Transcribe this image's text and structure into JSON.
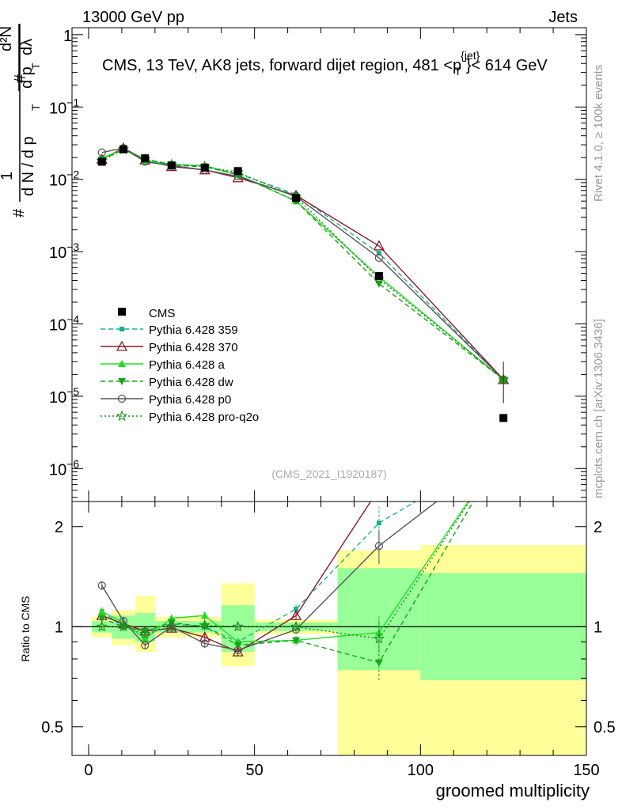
{
  "header": {
    "energy_label": "13000 GeV pp",
    "category_label": "Jets",
    "plot_title_main": "CMS, 13 TeV, AK8 jets, forward dijet region, 481 <p",
    "plot_title_sup": "{jet}",
    "plot_title_sub": "T",
    "plot_title_end": "}< 614 GeV",
    "analysis_id": "(CMS_2021_I1920187)",
    "side_label_rivet": "Rivet 4.1.0, ≥ 100k events",
    "side_label_mcplots": "mcplots.cern.ch [arXiv:1306.3436]"
  },
  "axes": {
    "ylabel_main": "1/N dN/dpT / d²N/dpT dλ",
    "ylabel_ratio": "Ratio to CMS",
    "xlabel": "groomed multiplicity"
  },
  "colors": {
    "data": "#000000",
    "p359": "#1ab08a",
    "p370": "#8b1a2a",
    "pa": "#22dd22",
    "pdw": "#19a319",
    "pp0": "#555555",
    "pq2o": "#1a8f1a",
    "band_outer": "#ffff99",
    "band_inner": "#99ff99"
  },
  "chart_data": {
    "type": "line",
    "xlim": [
      -5,
      150
    ],
    "ylim_log": [
      3.5e-07,
      1.25
    ],
    "ratio_ylim": [
      0.41,
      2.38
    ],
    "x_ticks": [
      0,
      50,
      100,
      150
    ],
    "ratio_ticks": [
      "0.5",
      "1",
      "2"
    ],
    "main_ticks": [
      {
        "label": "1",
        "sup": "",
        "val": 1
      },
      {
        "label": "10",
        "sup": "−1",
        "val": 0.1
      },
      {
        "label": "10",
        "sup": "−2",
        "val": 0.01
      },
      {
        "label": "10",
        "sup": "−3",
        "val": 0.001
      },
      {
        "label": "10",
        "sup": "−4",
        "val": 0.0001
      },
      {
        "label": "10",
        "sup": "−5",
        "val": 1e-05
      },
      {
        "label": "10",
        "sup": "−6",
        "val": 1e-06
      }
    ],
    "bins": [
      [
        1,
        7
      ],
      [
        7,
        14
      ],
      [
        14,
        20
      ],
      [
        20,
        30
      ],
      [
        30,
        40
      ],
      [
        40,
        50
      ],
      [
        50,
        75
      ],
      [
        75,
        100
      ],
      [
        100,
        150
      ]
    ],
    "data_x": [
      4,
      10.5,
      17,
      25,
      35,
      45,
      62.5,
      87.5,
      125
    ],
    "data_y": [
      0.0175,
      0.026,
      0.0195,
      0.0155,
      0.0145,
      0.013,
      0.0055,
      0.00046,
      5e-06
    ],
    "band_outer": [
      [
        0.93,
        1.07
      ],
      [
        0.88,
        1.12
      ],
      [
        0.84,
        1.24
      ],
      [
        0.93,
        1.07
      ],
      [
        0.93,
        1.07
      ],
      [
        0.76,
        1.35
      ],
      [
        0.95,
        1.05
      ],
      [
        0.35,
        1.7
      ],
      [
        0.35,
        1.76
      ]
    ],
    "band_inner": [
      [
        0.96,
        1.04
      ],
      [
        0.92,
        1.08
      ],
      [
        0.9,
        1.1
      ],
      [
        0.96,
        1.04
      ],
      [
        0.96,
        1.04
      ],
      [
        0.84,
        1.16
      ],
      [
        0.97,
        1.03
      ],
      [
        0.74,
        1.5
      ],
      [
        0.69,
        1.45
      ]
    ],
    "series": [
      {
        "name": "Pythia 6.428 359",
        "key": "p359",
        "dash": "6,4",
        "marker": "square-small",
        "y": [
          0.0195,
          0.026,
          0.019,
          0.0158,
          0.0148,
          0.012,
          0.0062,
          0.00095,
          1.7e-05
        ],
        "ratio": [
          1.11,
          1.0,
          0.97,
          1.02,
          1.0,
          0.9,
          1.13,
          2.05,
          3.4
        ]
      },
      {
        "name": "Pythia 6.428 370",
        "key": "p370",
        "dash": "",
        "marker": "triangle-up-open",
        "y": [
          0.019,
          0.027,
          0.0185,
          0.015,
          0.0135,
          0.0105,
          0.006,
          0.0012,
          1.7e-05
        ],
        "ratio": [
          1.08,
          1.02,
          0.97,
          0.99,
          0.93,
          0.84,
          1.08,
          2.6,
          3.4
        ]
      },
      {
        "name": "Pythia 6.428 a",
        "key": "pa",
        "dash": "",
        "marker": "triangle-up",
        "y": [
          0.0195,
          0.026,
          0.018,
          0.016,
          0.0155,
          0.0115,
          0.005,
          0.00045,
          1.7e-05
        ],
        "ratio": [
          1.11,
          1.03,
          0.92,
          1.06,
          1.08,
          0.9,
          0.91,
          0.96,
          3.4
        ]
      },
      {
        "name": "Pythia 6.428 dw",
        "key": "pdw",
        "dash": "6,4",
        "marker": "triangle-down",
        "y": [
          0.0185,
          0.026,
          0.019,
          0.016,
          0.015,
          0.0115,
          0.005,
          0.00036,
          1.7e-05
        ],
        "ratio": [
          1.06,
          1.0,
          0.97,
          1.03,
          1.0,
          0.88,
          0.91,
          0.78,
          3.4
        ]
      },
      {
        "name": "Pythia 6.428 p0",
        "key": "pp0",
        "dash": "",
        "marker": "circle-open",
        "y": [
          0.0235,
          0.027,
          0.0175,
          0.0155,
          0.0135,
          0.011,
          0.0058,
          0.00082,
          1.7e-05
        ],
        "ratio": [
          1.33,
          1.04,
          0.88,
          1.0,
          0.89,
          0.85,
          0.98,
          1.75,
          3.4
        ]
      },
      {
        "name": "Pythia 6.428 pro-q2o",
        "key": "pq2o",
        "dash": "2,3",
        "marker": "star-open",
        "y": [
          0.018,
          0.026,
          0.019,
          0.016,
          0.015,
          0.0125,
          0.0057,
          0.00042,
          1.7e-05
        ],
        "ratio": [
          1.0,
          1.0,
          0.95,
          1.0,
          1.01,
          1.0,
          1.0,
          0.92,
          3.4
        ]
      }
    ]
  }
}
